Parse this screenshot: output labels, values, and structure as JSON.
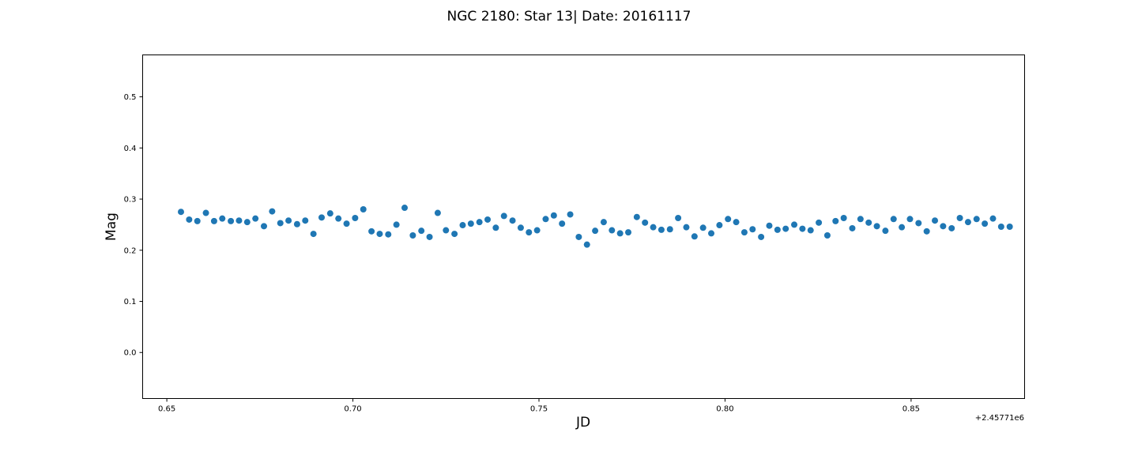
{
  "chart_data": {
    "type": "scatter",
    "title": "NGC 2180: Star 13| Date: 20161117",
    "xlabel": "JD",
    "ylabel": "Mag",
    "x_offset_label": "+2.45771e6",
    "xlim": [
      0.6435,
      0.8805
    ],
    "ylim": [
      -0.09,
      0.582
    ],
    "xticks": [
      0.65,
      0.7,
      0.75,
      0.8,
      0.85
    ],
    "xtick_labels": [
      "0.65",
      "0.70",
      "0.75",
      "0.80",
      "0.85"
    ],
    "yticks": [
      0.0,
      0.1,
      0.2,
      0.3,
      0.4,
      0.5
    ],
    "ytick_labels": [
      "0.0",
      "0.1",
      "0.2",
      "0.3",
      "0.4",
      "0.5"
    ],
    "grid": false,
    "marker_color": "#1f77b4",
    "series": [
      {
        "x": [
          0.6538,
          0.656,
          0.6582,
          0.6605,
          0.6627,
          0.6649,
          0.6672,
          0.6694,
          0.6716,
          0.6738,
          0.6761,
          0.6783,
          0.6805,
          0.6827,
          0.685,
          0.6872,
          0.6894,
          0.6916,
          0.6939,
          0.6961,
          0.6983,
          0.7006,
          0.7028,
          0.705,
          0.7072,
          0.7095,
          0.7117,
          0.7139,
          0.7161,
          0.7184,
          0.7206,
          0.7228,
          0.725,
          0.7273,
          0.7295,
          0.7317,
          0.734,
          0.7362,
          0.7384,
          0.7406,
          0.7429,
          0.7451,
          0.7473,
          0.7495,
          0.7518,
          0.754,
          0.7562,
          0.7584,
          0.7607,
          0.7629,
          0.7651,
          0.7674,
          0.7696,
          0.7718,
          0.774,
          0.7763,
          0.7785,
          0.7807,
          0.7829,
          0.7852,
          0.7874,
          0.7896,
          0.7918,
          0.7941,
          0.7963,
          0.7985,
          0.8008,
          0.803,
          0.8052,
          0.8074,
          0.8097,
          0.8119,
          0.8141,
          0.8163,
          0.8186,
          0.8208,
          0.823,
          0.8252,
          0.8275,
          0.8297,
          0.8319,
          0.8342,
          0.8364,
          0.8386,
          0.8408,
          0.8431,
          0.8453,
          0.8475,
          0.8497,
          0.852,
          0.8542,
          0.8564,
          0.8586,
          0.8609,
          0.8631,
          0.8653,
          0.8676,
          0.8698,
          0.872,
          0.8742,
          0.8765
        ],
        "y": [
          0.275,
          0.26,
          0.257,
          0.273,
          0.257,
          0.262,
          0.257,
          0.258,
          0.255,
          0.262,
          0.247,
          0.276,
          0.253,
          0.258,
          0.251,
          0.258,
          0.232,
          0.264,
          0.272,
          0.262,
          0.252,
          0.263,
          0.28,
          0.237,
          0.232,
          0.231,
          0.25,
          0.283,
          0.229,
          0.238,
          0.226,
          0.273,
          0.239,
          0.232,
          0.249,
          0.252,
          0.255,
          0.26,
          0.244,
          0.267,
          0.258,
          0.244,
          0.235,
          0.239,
          0.261,
          0.268,
          0.252,
          0.27,
          0.226,
          0.211,
          0.238,
          0.255,
          0.239,
          0.233,
          0.235,
          0.265,
          0.254,
          0.245,
          0.24,
          0.241,
          0.263,
          0.245,
          0.227,
          0.244,
          0.233,
          0.249,
          0.261,
          0.255,
          0.235,
          0.241,
          0.226,
          0.248,
          0.24,
          0.242,
          0.25,
          0.242,
          0.239,
          0.254,
          0.229,
          0.257,
          0.263,
          0.243,
          0.261,
          0.254,
          0.247,
          0.238,
          0.261,
          0.245,
          0.261,
          0.253,
          0.237,
          0.258,
          0.247,
          0.243,
          0.263,
          0.255,
          0.261,
          0.252,
          0.262,
          0.246,
          0.246
        ]
      }
    ]
  }
}
